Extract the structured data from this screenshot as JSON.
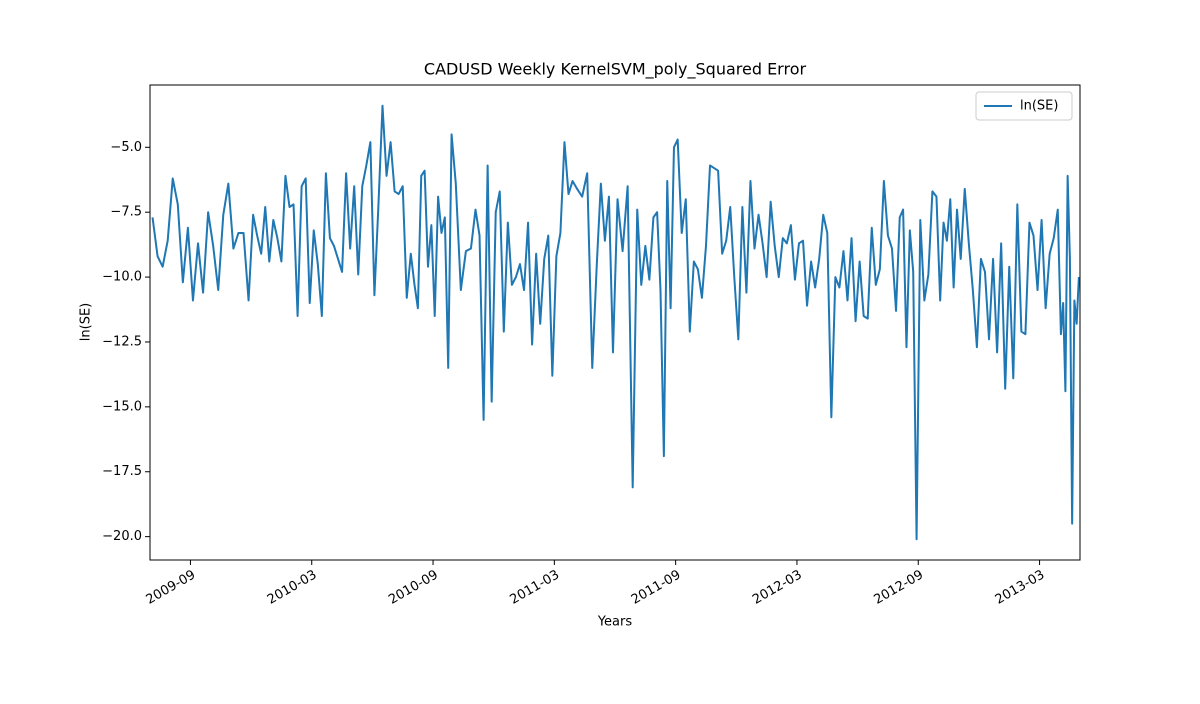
{
  "chart_data": {
    "type": "line",
    "title": "CADUSD Weekly KernelSVM_poly_Squared Error",
    "xlabel": "Years",
    "ylabel": "ln(SE)",
    "legend": "upper right",
    "xlim": [
      "2009-07",
      "2013-05"
    ],
    "ylim": [
      -20.9,
      -2.6
    ],
    "xticks": [
      "2009-09",
      "2010-03",
      "2010-09",
      "2011-03",
      "2011-09",
      "2012-03",
      "2012-09",
      "2013-03"
    ],
    "yticks": [
      {
        "value": -20,
        "label": "−20.0"
      },
      {
        "value": -17.5,
        "label": "−17.5"
      },
      {
        "value": -15,
        "label": "−15.0"
      },
      {
        "value": -12.5,
        "label": "−12.5"
      },
      {
        "value": -10,
        "label": "−10.0"
      },
      {
        "value": -7.5,
        "label": "−7.5"
      },
      {
        "value": -5,
        "label": "−5.0"
      }
    ],
    "x": [
      "2009-07",
      "2009-07",
      "2009-07",
      "2009-07",
      "2009-08",
      "2009-08",
      "2009-08",
      "2009-08",
      "2009-09",
      "2009-09",
      "2009-09",
      "2009-09",
      "2009-10",
      "2009-10",
      "2009-10",
      "2009-10",
      "2009-11",
      "2009-11",
      "2009-11",
      "2009-11",
      "2009-12",
      "2009-12",
      "2009-12",
      "2009-12",
      "2009-12",
      "2010-01",
      "2010-01",
      "2010-01",
      "2010-01",
      "2010-01",
      "2010-02",
      "2010-02",
      "2010-02",
      "2010-02",
      "2010-02",
      "2010-03",
      "2010-03",
      "2010-03",
      "2010-03",
      "2010-03",
      "2010-04",
      "2010-04",
      "2010-04",
      "2010-04",
      "2010-04",
      "2010-05",
      "2010-05",
      "2010-05",
      "2010-05",
      "2010-05",
      "2010-06",
      "2010-06",
      "2010-06",
      "2010-06",
      "2010-06",
      "2010-07",
      "2010-07",
      "2010-07",
      "2010-07",
      "2010-07",
      "2010-08",
      "2010-08",
      "2010-08",
      "2010-08",
      "2010-08",
      "2010-08",
      "2010-09",
      "2010-09",
      "2010-09",
      "2010-09",
      "2010-09",
      "2010-09",
      "2010-10",
      "2010-10",
      "2010-10",
      "2010-10",
      "2010-11",
      "2010-11",
      "2010-11",
      "2010-11",
      "2010-11",
      "2010-12",
      "2010-12",
      "2010-12",
      "2010-12",
      "2010-12",
      "2011-01",
      "2011-01",
      "2011-01",
      "2011-01",
      "2011-01",
      "2011-02",
      "2011-02",
      "2011-02",
      "2011-02",
      "2011-02",
      "2011-03",
      "2011-03",
      "2011-03",
      "2011-03",
      "2011-03",
      "2011-04",
      "2011-04",
      "2011-04",
      "2011-04",
      "2011-05",
      "2011-05",
      "2011-05",
      "2011-05",
      "2011-05",
      "2011-06",
      "2011-06",
      "2011-06",
      "2011-06",
      "2011-07",
      "2011-07",
      "2011-07",
      "2011-07",
      "2011-07",
      "2011-08",
      "2011-08",
      "2011-08",
      "2011-08",
      "2011-08",
      "2011-08",
      "2011-09",
      "2011-09",
      "2011-09",
      "2011-09",
      "2011-09",
      "2011-10",
      "2011-10",
      "2011-10",
      "2011-10",
      "2011-10",
      "2011-11",
      "2011-11",
      "2011-11",
      "2011-11",
      "2011-11",
      "2011-12",
      "2011-12",
      "2011-12",
      "2011-12",
      "2011-12",
      "2012-01",
      "2012-01",
      "2012-01",
      "2012-01",
      "2012-01",
      "2012-02",
      "2012-02",
      "2012-02",
      "2012-02",
      "2012-02",
      "2012-03",
      "2012-03",
      "2012-03",
      "2012-03",
      "2012-03",
      "2012-04",
      "2012-04",
      "2012-04",
      "2012-04",
      "2012-04",
      "2012-05",
      "2012-05",
      "2012-05",
      "2012-05",
      "2012-05",
      "2012-06",
      "2012-06",
      "2012-06",
      "2012-06",
      "2012-06",
      "2012-07",
      "2012-07",
      "2012-07",
      "2012-07",
      "2012-07",
      "2012-08",
      "2012-08",
      "2012-08",
      "2012-08",
      "2012-08",
      "2012-08",
      "2012-09",
      "2012-09",
      "2012-09",
      "2012-09",
      "2012-09",
      "2012-10",
      "2012-10",
      "2012-10",
      "2012-10",
      "2012-10",
      "2012-10",
      "2012-11",
      "2012-11",
      "2012-11",
      "2012-11",
      "2012-11",
      "2012-12",
      "2012-12",
      "2012-12",
      "2012-12",
      "2012-12",
      "2013-01",
      "2013-01",
      "2013-01",
      "2013-01",
      "2013-01",
      "2013-02",
      "2013-02",
      "2013-02",
      "2013-02",
      "2013-02",
      "2013-03",
      "2013-03",
      "2013-03",
      "2013-03",
      "2013-03",
      "2013-04",
      "2013-04",
      "2013-04",
      "2013-04",
      "2013-04",
      "2013-04",
      "2013-04",
      "2013-04",
      "2013-04"
    ],
    "series": [
      {
        "name": "ln(SE)",
        "color": "#1f77b4",
        "values": [
          -7.7,
          -9.2,
          -9.6,
          -8.6,
          -6.2,
          -7.2,
          -10.2,
          -8.1,
          -10.9,
          -8.7,
          -10.6,
          -7.5,
          -8.8,
          -10.5,
          -7.6,
          -6.4,
          -8.9,
          -8.3,
          -8.3,
          -10.9,
          -7.6,
          -8.4,
          -9.1,
          -7.3,
          -9.4,
          -7.8,
          -8.5,
          -9.4,
          -6.1,
          -7.3,
          -7.2,
          -11.5,
          -6.5,
          -6.2,
          -11.0,
          -8.2,
          -9.5,
          -11.5,
          -6.0,
          -8.5,
          -8.8,
          -9.3,
          -9.8,
          -6.0,
          -8.9,
          -6.5,
          -9.9,
          -6.5,
          -5.7,
          -4.8,
          -10.7,
          -7.2,
          -3.4,
          -6.1,
          -4.8,
          -6.7,
          -6.8,
          -6.5,
          -10.8,
          -9.1,
          -10.3,
          -11.2,
          -6.1,
          -5.9,
          -9.6,
          -8.0,
          -11.5,
          -6.9,
          -8.3,
          -7.7,
          -13.5,
          -4.5,
          -6.4,
          -10.5,
          -9.0,
          -8.9,
          -7.4,
          -8.4,
          -15.5,
          -5.7,
          -14.8,
          -7.5,
          -6.7,
          -12.1,
          -7.9,
          -10.3,
          -10.0,
          -9.5,
          -10.5,
          -7.9,
          -12.6,
          -9.1,
          -11.8,
          -9.3,
          -8.4,
          -13.8,
          -9.2,
          -8.3,
          -4.8,
          -6.8,
          -6.3,
          -6.6,
          -6.9,
          -6.0,
          -13.5,
          -9.5,
          -6.4,
          -8.6,
          -6.9,
          -12.9,
          -7.0,
          -9.0,
          -6.5,
          -18.1,
          -7.4,
          -10.3,
          -8.8,
          -10.1,
          -7.7,
          -7.5,
          -10.5,
          -16.9,
          -6.3,
          -11.2,
          -5.0,
          -4.7,
          -8.3,
          -7.0,
          -12.1,
          -9.4,
          -9.7,
          -10.8,
          -8.8,
          -5.7,
          -5.8,
          -5.9,
          -9.1,
          -8.6,
          -7.3,
          -10.0,
          -12.4,
          -7.3,
          -10.6,
          -6.3,
          -8.9,
          -7.6,
          -8.7,
          -10.0,
          -7.1,
          -8.8,
          -10.0,
          -8.5,
          -8.7,
          -8.0,
          -10.1,
          -8.7,
          -8.6,
          -11.1,
          -9.4,
          -10.4,
          -9.3,
          -7.6,
          -8.3,
          -15.4,
          -10.0,
          -10.4,
          -9.0,
          -10.9,
          -8.5,
          -11.7,
          -9.4,
          -11.5,
          -11.6,
          -8.1,
          -10.3,
          -9.7,
          -6.3,
          -8.4,
          -8.9,
          -11.3,
          -7.7,
          -7.4,
          -12.7,
          -8.2,
          -9.8,
          -20.1,
          -7.8,
          -10.9,
          -9.9,
          -6.7,
          -6.9,
          -10.9,
          -7.9,
          -8.6,
          -7.0,
          -10.4,
          -7.4,
          -9.3,
          -6.6,
          -8.7,
          -10.5,
          -12.7,
          -9.3,
          -9.8,
          -12.4,
          -9.3,
          -12.9,
          -8.7,
          -14.3,
          -9.6,
          -13.9,
          -7.2,
          -12.1,
          -12.2,
          -7.9,
          -8.4,
          -10.5,
          -7.8,
          -11.2,
          -9.1,
          -8.5,
          -7.4,
          -12.2,
          -11.0,
          -14.4,
          -6.1,
          -9.3,
          -19.5,
          -10.9,
          -11.8,
          -10.0
        ]
      }
    ]
  }
}
